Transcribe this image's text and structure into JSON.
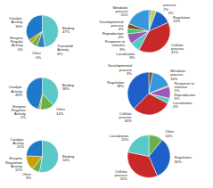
{
  "chart_data": [
    {
      "type": "pie",
      "categories": [
        "Binding\n47%",
        "Transdubl\nActivity\n8%",
        "Other\n6%",
        "Enzyme\nRegulat\nActivity\n4%",
        "Catalytic\nActivity\n34%"
      ],
      "values": [
        47,
        8,
        6,
        4,
        34
      ],
      "colors": [
        "#5bc8c8",
        "#3a7ab8",
        "#6ab04c",
        "#c8a000",
        "#1e7ac8"
      ]
    },
    {
      "type": "pie",
      "categories": [
        "process\n2%",
        "4%",
        "Regulation\n13%",
        "Cellular\nprocess\n41%",
        "Localization\n8%",
        "Response to\nstimulus\n8%",
        "Reproduction\n4%",
        "Developmental\nprocess\n4%",
        "Metabolic\nprocess\n20%"
      ],
      "values": [
        2,
        4,
        13,
        41,
        8,
        8,
        4,
        4,
        20
      ],
      "colors": [
        "#8c8c8c",
        "#b8d458",
        "#1e60c8",
        "#c82828",
        "#5bc8c8",
        "#9b59b6",
        "#2ecc71",
        "#8b4513",
        "#3498db"
      ]
    },
    {
      "type": "pie",
      "categories": [
        "Binding\n38%",
        "Other\n14%",
        "Enzyme\nRegulate\nActivity\n2%",
        "Catalytic\nActivity\n46%"
      ],
      "values": [
        38,
        14,
        2,
        46
      ],
      "colors": [
        "#5bc8c8",
        "#6ab04c",
        "#c8a000",
        "#1e7ac8"
      ]
    },
    {
      "type": "pie",
      "categories": [
        "Developmental\nprocess\n3%",
        "Metabolic\nprocess\n16%",
        "Response to\nstimulus\n1%",
        "Reproduction\n9%",
        "Localization\n4%",
        "Cellular\nprocess\n30%",
        "Regulation\n38%"
      ],
      "values": [
        3,
        16,
        1,
        9,
        4,
        30,
        38
      ],
      "colors": [
        "#8b4513",
        "#3498db",
        "#e67e22",
        "#9b59b6",
        "#5bc8c8",
        "#c82828",
        "#1e60c8"
      ]
    },
    {
      "type": "pie",
      "categories": [
        "Binding\n54%",
        "Other\n8%",
        "Enzyme\nRegulation\nActivity\n15%",
        "Catalytic\nActivity\n25%"
      ],
      "values": [
        54,
        8,
        15,
        25
      ],
      "colors": [
        "#5bc8c8",
        "#6ab04c",
        "#c8a000",
        "#1e7ac8"
      ]
    },
    {
      "type": "pie",
      "categories": [
        "Other\n10%",
        "Regulation\n30%",
        "Cellular\nprocess\n32%",
        "Localization\n20%"
      ],
      "values": [
        10,
        30,
        32,
        20
      ],
      "colors": [
        "#6ab04c",
        "#1e60c8",
        "#c82828",
        "#5bc8c8"
      ]
    }
  ]
}
